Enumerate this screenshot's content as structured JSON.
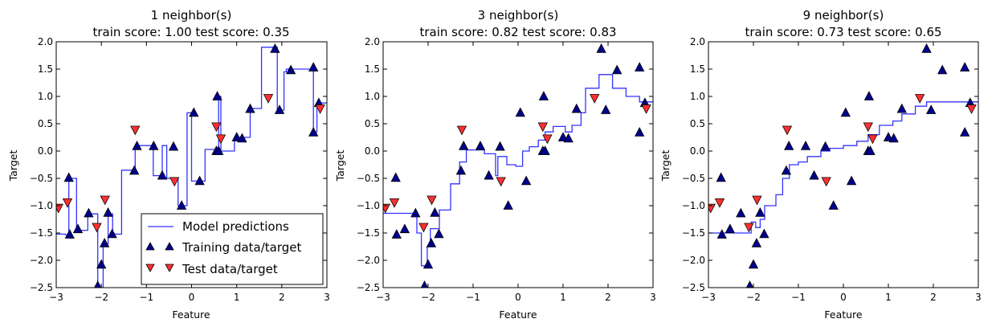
{
  "figure": {
    "colors": {
      "prediction_line": "#3333ff",
      "train_marker": "#00008b",
      "test_marker": "#ff3030"
    }
  },
  "chart_data": [
    {
      "type": "line",
      "title": "1 neighbor(s)",
      "subtitle": "train score: 1.00 test score: 0.35",
      "xlabel": "Feature",
      "ylabel": "Target",
      "xlim": [
        -3,
        3
      ],
      "ylim": [
        -2.5,
        2.0
      ],
      "xticks": [
        "−3",
        "−2",
        "−1",
        "0",
        "1",
        "2",
        "3"
      ],
      "yticks": [
        "2.0",
        "1.5",
        "1.0",
        "0.5",
        "0.0",
        "−0.5",
        "−1.0",
        "−1.5",
        "−2.0",
        "−2.5"
      ],
      "legend": {
        "position": "lower-right",
        "entries": [
          "Model predictions",
          "Training data/target",
          "Test data/target"
        ]
      },
      "series": [
        {
          "name": "Model predictions",
          "kind": "step",
          "points": [
            [
              -3.0,
              -1.52
            ],
            [
              -2.8,
              -1.53
            ],
            [
              -2.72,
              -0.5
            ],
            [
              -2.55,
              -1.45
            ],
            [
              -2.3,
              -1.15
            ],
            [
              -2.08,
              -2.5
            ],
            [
              -1.96,
              -1.7
            ],
            [
              -1.85,
              -1.15
            ],
            [
              -1.75,
              -1.52
            ],
            [
              -1.55,
              -0.35
            ],
            [
              -1.25,
              0.1
            ],
            [
              -0.9,
              0.1
            ],
            [
              -0.85,
              -0.45
            ],
            [
              -0.65,
              0.1
            ],
            [
              -0.55,
              -0.5
            ],
            [
              -0.3,
              -1.0
            ],
            [
              -0.1,
              0.7
            ],
            [
              0.0,
              -0.55
            ],
            [
              0.3,
              0.03
            ],
            [
              0.6,
              1.0
            ],
            [
              0.65,
              0.0
            ],
            [
              0.95,
              0.25
            ],
            [
              1.3,
              0.78
            ],
            [
              1.55,
              1.9
            ],
            [
              1.9,
              0.75
            ],
            [
              2.05,
              1.45
            ],
            [
              2.1,
              1.5
            ],
            [
              2.7,
              0.35
            ],
            [
              2.78,
              0.88
            ],
            [
              3.0,
              0.88
            ]
          ]
        },
        {
          "name": "Training data/target",
          "kind": "marker",
          "points": [
            [
              -2.7,
              -1.53
            ],
            [
              -2.72,
              -0.49
            ],
            [
              -2.52,
              -1.43
            ],
            [
              -2.28,
              -1.14
            ],
            [
              -2.08,
              -2.47
            ],
            [
              -2.0,
              -2.08
            ],
            [
              -1.93,
              -1.69
            ],
            [
              -1.85,
              -1.13
            ],
            [
              -1.76,
              -1.52
            ],
            [
              -1.27,
              -0.36
            ],
            [
              -1.21,
              0.09
            ],
            [
              -0.84,
              0.09
            ],
            [
              -0.65,
              -0.45
            ],
            [
              -0.4,
              0.08
            ],
            [
              -0.22,
              -1.0
            ],
            [
              0.05,
              0.7
            ],
            [
              0.18,
              -0.55
            ],
            [
              0.55,
              0.0
            ],
            [
              0.57,
              1.0
            ],
            [
              0.6,
              0.0
            ],
            [
              1.0,
              0.25
            ],
            [
              1.12,
              0.23
            ],
            [
              1.3,
              0.77
            ],
            [
              1.85,
              1.87
            ],
            [
              1.95,
              0.75
            ],
            [
              2.2,
              1.48
            ],
            [
              2.7,
              1.53
            ],
            [
              2.7,
              0.34
            ],
            [
              2.82,
              0.88
            ]
          ]
        },
        {
          "name": "Test data/target",
          "kind": "marker",
          "points": [
            [
              -2.95,
              -1.04
            ],
            [
              -2.75,
              -0.94
            ],
            [
              -2.1,
              -1.39
            ],
            [
              -1.92,
              -0.89
            ],
            [
              -1.25,
              0.39
            ],
            [
              -0.38,
              -0.55
            ],
            [
              0.55,
              0.45
            ],
            [
              0.65,
              0.23
            ],
            [
              1.7,
              0.97
            ],
            [
              2.85,
              0.78
            ]
          ]
        }
      ]
    },
    {
      "type": "line",
      "title": "3 neighbor(s)",
      "subtitle": "train score: 0.82 test score: 0.83",
      "xlabel": "Feature",
      "ylabel": "Target",
      "xlim": [
        -3,
        3
      ],
      "ylim": [
        -2.5,
        2.0
      ],
      "xticks": [
        "−3",
        "−2",
        "−1",
        "0",
        "1",
        "2",
        "3"
      ],
      "yticks": [
        "2.0",
        "1.5",
        "1.0",
        "0.5",
        "0.0",
        "−0.5",
        "−1.0",
        "−1.5",
        "−2.0",
        "−2.5"
      ],
      "series": [
        {
          "name": "Model predictions",
          "kind": "step",
          "points": [
            [
              -3.0,
              -1.14
            ],
            [
              -2.5,
              -1.14
            ],
            [
              -2.25,
              -1.5
            ],
            [
              -2.15,
              -2.1
            ],
            [
              -2.02,
              -1.75
            ],
            [
              -1.95,
              -1.42
            ],
            [
              -1.75,
              -1.08
            ],
            [
              -1.5,
              -0.6
            ],
            [
              -1.3,
              -0.2
            ],
            [
              -1.15,
              0.02
            ],
            [
              -0.75,
              -0.05
            ],
            [
              -0.5,
              -0.45
            ],
            [
              -0.45,
              -0.1
            ],
            [
              -0.25,
              -0.25
            ],
            [
              -0.05,
              -0.28
            ],
            [
              0.1,
              0.0
            ],
            [
              0.25,
              0.08
            ],
            [
              0.45,
              0.2
            ],
            [
              0.6,
              0.35
            ],
            [
              0.78,
              0.45
            ],
            [
              1.05,
              0.35
            ],
            [
              1.2,
              0.47
            ],
            [
              1.4,
              0.7
            ],
            [
              1.5,
              1.15
            ],
            [
              1.8,
              1.4
            ],
            [
              2.1,
              1.15
            ],
            [
              2.4,
              1.0
            ],
            [
              2.7,
              0.9
            ],
            [
              3.0,
              0.9
            ]
          ]
        },
        {
          "name": "Training data/target",
          "kind": "marker",
          "points": [
            [
              -2.7,
              -1.53
            ],
            [
              -2.72,
              -0.49
            ],
            [
              -2.52,
              -1.43
            ],
            [
              -2.28,
              -1.14
            ],
            [
              -2.08,
              -2.47
            ],
            [
              -2.0,
              -2.08
            ],
            [
              -1.93,
              -1.69
            ],
            [
              -1.85,
              -1.13
            ],
            [
              -1.76,
              -1.52
            ],
            [
              -1.27,
              -0.36
            ],
            [
              -1.21,
              0.09
            ],
            [
              -0.84,
              0.09
            ],
            [
              -0.65,
              -0.45
            ],
            [
              -0.4,
              0.08
            ],
            [
              -0.22,
              -1.0
            ],
            [
              0.05,
              0.7
            ],
            [
              0.18,
              -0.55
            ],
            [
              0.55,
              0.0
            ],
            [
              0.57,
              1.0
            ],
            [
              0.6,
              0.0
            ],
            [
              1.0,
              0.25
            ],
            [
              1.12,
              0.23
            ],
            [
              1.3,
              0.77
            ],
            [
              1.85,
              1.87
            ],
            [
              1.95,
              0.75
            ],
            [
              2.2,
              1.48
            ],
            [
              2.7,
              1.53
            ],
            [
              2.7,
              0.34
            ],
            [
              2.82,
              0.88
            ]
          ]
        },
        {
          "name": "Test data/target",
          "kind": "marker",
          "points": [
            [
              -2.95,
              -1.04
            ],
            [
              -2.75,
              -0.94
            ],
            [
              -2.1,
              -1.39
            ],
            [
              -1.92,
              -0.89
            ],
            [
              -1.25,
              0.39
            ],
            [
              -0.38,
              -0.55
            ],
            [
              0.55,
              0.45
            ],
            [
              0.65,
              0.23
            ],
            [
              1.7,
              0.97
            ],
            [
              2.85,
              0.78
            ]
          ]
        }
      ]
    },
    {
      "type": "line",
      "title": "9 neighbor(s)",
      "subtitle": "train score: 0.73 test score: 0.65",
      "xlabel": "Feature",
      "ylabel": "Target",
      "xlim": [
        -3,
        3
      ],
      "ylim": [
        -2.5,
        2.0
      ],
      "xticks": [
        "−3",
        "−2",
        "−1",
        "0",
        "1",
        "2",
        "3"
      ],
      "yticks": [
        "2.0",
        "1.5",
        "1.0",
        "0.5",
        "0.0",
        "−0.5",
        "−1.0",
        "−1.5",
        "−2.0",
        "−2.5"
      ],
      "series": [
        {
          "name": "Model predictions",
          "kind": "step",
          "points": [
            [
              -3.0,
              -1.5
            ],
            [
              -2.2,
              -1.5
            ],
            [
              -2.05,
              -1.3
            ],
            [
              -1.95,
              -1.4
            ],
            [
              -1.85,
              -1.25
            ],
            [
              -1.75,
              -1.0
            ],
            [
              -1.5,
              -0.8
            ],
            [
              -1.35,
              -0.5
            ],
            [
              -1.2,
              -0.25
            ],
            [
              -1.0,
              -0.2
            ],
            [
              -0.8,
              -0.1
            ],
            [
              -0.5,
              0.0
            ],
            [
              -0.3,
              0.05
            ],
            [
              0.0,
              0.1
            ],
            [
              0.3,
              0.18
            ],
            [
              0.55,
              0.3
            ],
            [
              0.8,
              0.47
            ],
            [
              1.1,
              0.55
            ],
            [
              1.3,
              0.68
            ],
            [
              1.6,
              0.82
            ],
            [
              1.85,
              0.9
            ],
            [
              3.0,
              0.9
            ]
          ]
        },
        {
          "name": "Training data/target",
          "kind": "marker",
          "points": [
            [
              -2.7,
              -1.53
            ],
            [
              -2.72,
              -0.49
            ],
            [
              -2.52,
              -1.43
            ],
            [
              -2.28,
              -1.14
            ],
            [
              -2.08,
              -2.47
            ],
            [
              -2.0,
              -2.08
            ],
            [
              -1.93,
              -1.69
            ],
            [
              -1.85,
              -1.13
            ],
            [
              -1.76,
              -1.52
            ],
            [
              -1.27,
              -0.36
            ],
            [
              -1.21,
              0.09
            ],
            [
              -0.84,
              0.09
            ],
            [
              -0.65,
              -0.45
            ],
            [
              -0.4,
              0.08
            ],
            [
              -0.22,
              -1.0
            ],
            [
              0.05,
              0.7
            ],
            [
              0.18,
              -0.55
            ],
            [
              0.55,
              0.0
            ],
            [
              0.57,
              1.0
            ],
            [
              0.6,
              0.0
            ],
            [
              1.0,
              0.25
            ],
            [
              1.12,
              0.23
            ],
            [
              1.3,
              0.77
            ],
            [
              1.85,
              1.87
            ],
            [
              1.95,
              0.75
            ],
            [
              2.2,
              1.48
            ],
            [
              2.7,
              1.53
            ],
            [
              2.7,
              0.34
            ],
            [
              2.82,
              0.88
            ]
          ]
        },
        {
          "name": "Test data/target",
          "kind": "marker",
          "points": [
            [
              -2.95,
              -1.04
            ],
            [
              -2.75,
              -0.94
            ],
            [
              -2.1,
              -1.39
            ],
            [
              -1.92,
              -0.89
            ],
            [
              -1.25,
              0.39
            ],
            [
              -0.38,
              -0.55
            ],
            [
              0.55,
              0.45
            ],
            [
              0.65,
              0.23
            ],
            [
              1.7,
              0.97
            ],
            [
              2.85,
              0.78
            ]
          ]
        }
      ]
    }
  ]
}
